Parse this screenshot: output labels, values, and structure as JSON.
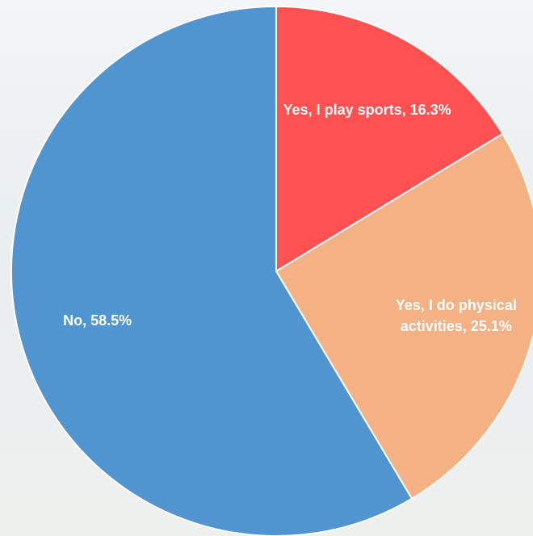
{
  "chart_data": {
    "type": "pie",
    "categories": [
      "Yes, I play sports",
      "Yes, I do physical activities",
      "No"
    ],
    "values": [
      16.3,
      25.1,
      58.5
    ],
    "value_labels": [
      "Yes, I play sports, 16.3%",
      "Yes, I do physical activities, 25.1%",
      "No, 58.5%"
    ],
    "colors": [
      "#ff5151",
      "#f4b183",
      "#5094d0"
    ]
  }
}
